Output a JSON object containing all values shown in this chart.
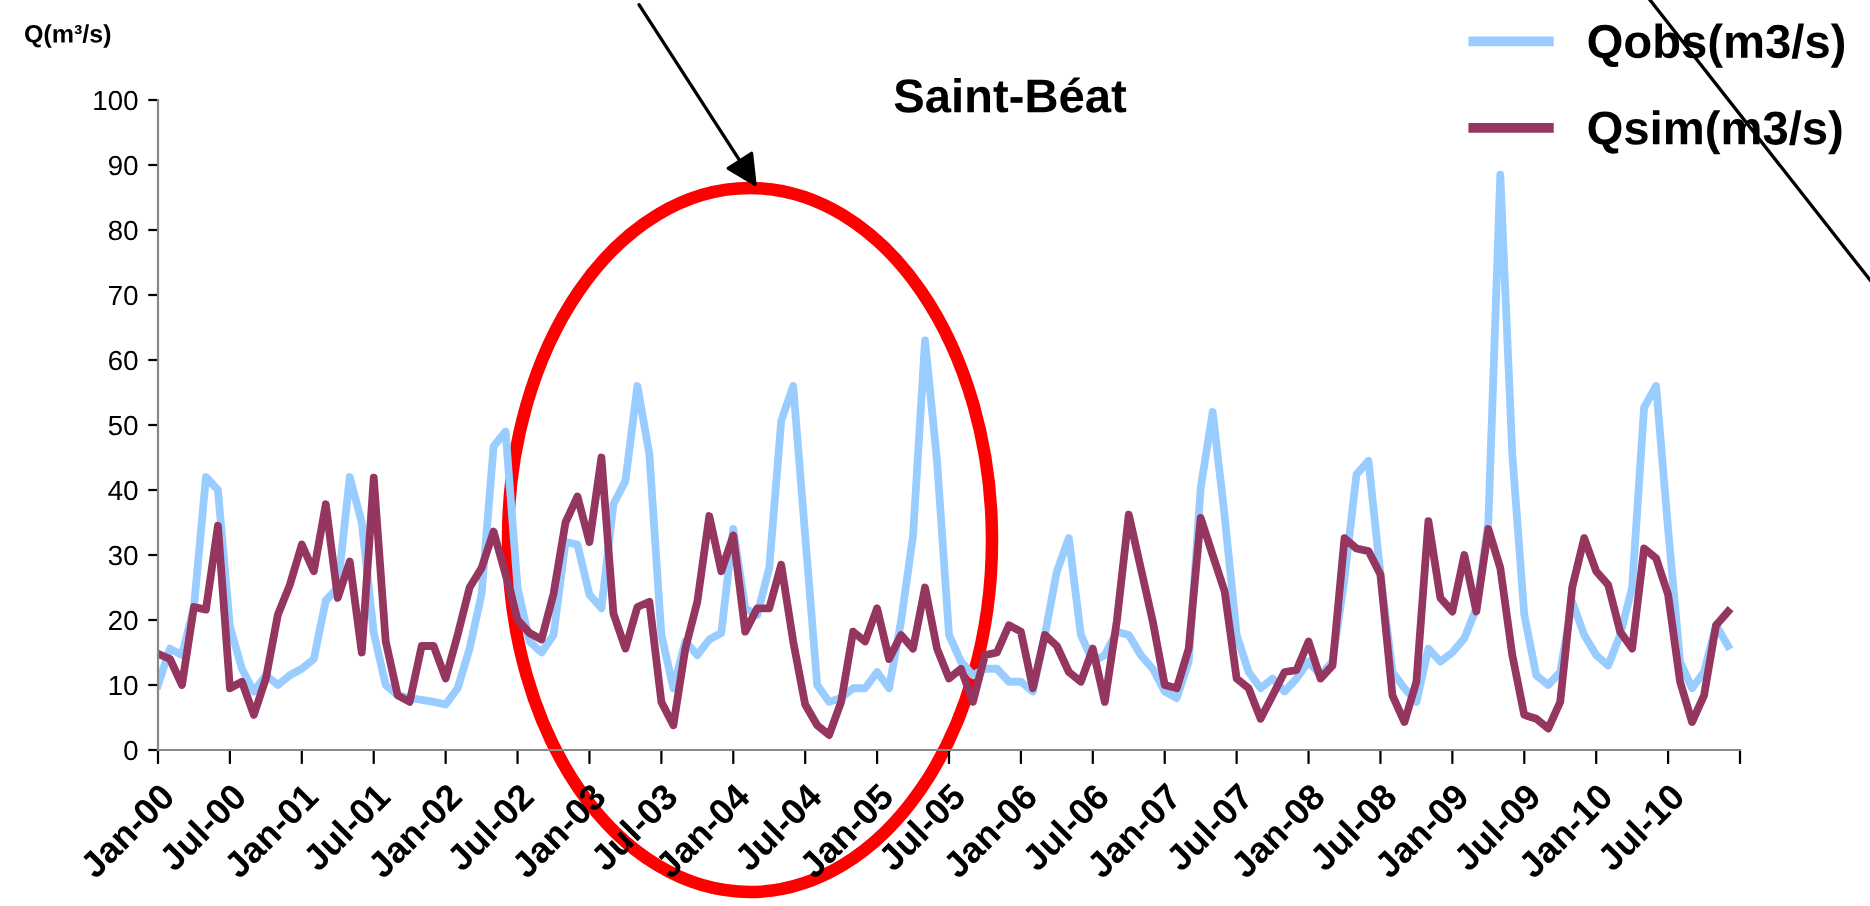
{
  "chart_data": {
    "type": "line",
    "title": "Saint-Béat",
    "ylabel": "Q(m³/s)",
    "x": [
      "2000-01",
      "2000-02",
      "2000-03",
      "2000-04",
      "2000-05",
      "2000-06",
      "2000-07",
      "2000-08",
      "2000-09",
      "2000-10",
      "2000-11",
      "2000-12",
      "2001-01",
      "2001-02",
      "2001-03",
      "2001-04",
      "2001-05",
      "2001-06",
      "2001-07",
      "2001-08",
      "2001-09",
      "2001-10",
      "2001-11",
      "2001-12",
      "2002-01",
      "2002-02",
      "2002-03",
      "2002-04",
      "2002-05",
      "2002-06",
      "2002-07",
      "2002-08",
      "2002-09",
      "2002-10",
      "2002-11",
      "2002-12",
      "2003-01",
      "2003-02",
      "2003-03",
      "2003-04",
      "2003-05",
      "2003-06",
      "2003-07",
      "2003-08",
      "2003-09",
      "2003-10",
      "2003-11",
      "2003-12",
      "2004-01",
      "2004-02",
      "2004-03",
      "2004-04",
      "2004-05",
      "2004-06",
      "2004-07",
      "2004-08",
      "2004-09",
      "2004-10",
      "2004-11",
      "2004-12",
      "2005-01",
      "2005-02",
      "2005-03",
      "2005-04",
      "2005-05",
      "2005-06",
      "2005-07",
      "2005-08",
      "2005-09",
      "2005-10",
      "2005-11",
      "2005-12",
      "2006-01",
      "2006-02",
      "2006-03",
      "2006-04",
      "2006-05",
      "2006-06",
      "2006-07",
      "2006-08",
      "2006-09",
      "2006-10",
      "2006-11",
      "2006-12",
      "2007-01",
      "2007-02",
      "2007-03",
      "2007-04",
      "2007-05",
      "2007-06",
      "2007-07",
      "2007-08",
      "2007-09",
      "2007-10",
      "2007-11",
      "2007-12",
      "2008-01",
      "2008-02",
      "2008-03",
      "2008-04",
      "2008-05",
      "2008-06",
      "2008-07",
      "2008-08",
      "2008-09",
      "2008-10",
      "2008-11",
      "2008-12",
      "2009-01",
      "2009-02",
      "2009-03",
      "2009-04",
      "2009-05",
      "2009-06",
      "2009-07",
      "2009-08",
      "2009-09",
      "2009-10",
      "2009-11",
      "2009-12",
      "2010-01",
      "2010-02",
      "2010-03",
      "2010-04",
      "2010-05",
      "2010-06",
      "2010-07",
      "2010-08",
      "2010-09",
      "2010-10",
      "2010-11",
      "2010-12"
    ],
    "series": [
      {
        "name": "Qobs(m3/s)",
        "color": "#99ccff",
        "values": [
          10,
          15.6,
          14.6,
          22,
          42,
          40,
          19,
          12.5,
          9,
          11.5,
          10,
          11.5,
          12.5,
          14,
          23,
          25,
          42,
          35,
          18,
          10,
          8.4,
          8,
          7.7,
          7.4,
          7,
          9.5,
          15.6,
          24,
          46.7,
          49,
          25,
          16.7,
          15,
          17.7,
          32,
          31.6,
          23.9,
          21.8,
          37.8,
          41.4,
          56,
          45.5,
          17.7,
          9.5,
          16.7,
          14.6,
          17,
          18,
          34,
          21.8,
          20.8,
          28,
          50.6,
          56,
          33,
          10,
          7.4,
          8,
          9.5,
          9.5,
          12,
          9.5,
          19.8,
          33,
          63,
          44.5,
          17.7,
          13.6,
          11.5,
          12.5,
          12.5,
          10.5,
          10.5,
          9,
          17.7,
          27.5,
          32.6,
          17.7,
          13.6,
          14.6,
          18.2,
          17.7,
          14.6,
          12.5,
          9,
          8,
          13.6,
          40.3,
          52,
          36,
          17.7,
          12,
          9.5,
          11,
          9,
          11,
          13.6,
          11.5,
          13.6,
          26.4,
          42.4,
          44.5,
          27,
          12,
          9.5,
          7.4,
          15.6,
          13.6,
          15,
          17.2,
          21.8,
          35,
          88.5,
          45.5,
          20.8,
          11.5,
          10,
          12,
          22.8,
          17.7,
          14.6,
          13,
          17.7,
          25,
          52.7,
          56,
          34,
          13.6,
          9.5,
          12,
          19.2,
          16
        ]
      },
      {
        "name": "Qsim(m3/s)",
        "color": "#953660",
        "values": [
          14.8,
          14,
          10,
          22,
          21.6,
          34.5,
          9.5,
          10.5,
          5.4,
          11,
          20.8,
          25.4,
          31.6,
          27.5,
          37.8,
          23.4,
          29,
          15,
          41.9,
          16.7,
          8.4,
          7.4,
          16,
          16,
          11,
          17.7,
          25,
          28,
          33.6,
          27,
          20,
          18,
          17,
          24,
          35,
          39,
          32,
          45,
          21,
          15.6,
          22,
          22.8,
          7.4,
          3.8,
          15.6,
          22.8,
          36,
          27.5,
          33,
          18.2,
          21.8,
          21.8,
          28.5,
          16.7,
          7,
          3.8,
          2.3,
          7.4,
          18.2,
          16.7,
          21.8,
          14,
          17.7,
          15.6,
          25,
          15.6,
          11,
          12.5,
          7.4,
          14.6,
          15,
          19.2,
          18.2,
          9.5,
          17.7,
          16,
          12,
          10.5,
          15.6,
          7.4,
          19.8,
          36.2,
          28,
          19.8,
          10,
          9.5,
          15.6,
          35.7,
          30,
          24.4,
          11,
          9.5,
          4.8,
          8.4,
          12,
          12.3,
          16.7,
          11,
          13,
          32.6,
          31,
          30.6,
          27,
          8.4,
          4.3,
          10.5,
          35.2,
          23.4,
          21.3,
          30,
          21.3,
          34,
          28,
          14.6,
          5.4,
          4.8,
          3.3,
          7.4,
          25,
          32.6,
          27.5,
          25.4,
          18.2,
          15.6,
          31,
          29.5,
          23.9,
          10.5,
          4.3,
          8.4,
          19.2,
          21.3
        ]
      }
    ],
    "xlim": [
      "2000-01",
      "2011-01"
    ],
    "xticks": [
      {
        "value": "2000-01",
        "label": "Jan-00"
      },
      {
        "value": "2000-07",
        "label": "Jul-00"
      },
      {
        "value": "2001-01",
        "label": "Jan-01"
      },
      {
        "value": "2001-07",
        "label": "Jul-01"
      },
      {
        "value": "2002-01",
        "label": "Jan-02"
      },
      {
        "value": "2002-07",
        "label": "Jul-02"
      },
      {
        "value": "2003-01",
        "label": "Jan-03"
      },
      {
        "value": "2003-07",
        "label": "Jul-03"
      },
      {
        "value": "2004-01",
        "label": "Jan-04"
      },
      {
        "value": "2004-07",
        "label": "Jul-04"
      },
      {
        "value": "2005-01",
        "label": "Jan-05"
      },
      {
        "value": "2005-07",
        "label": "Jul-05"
      },
      {
        "value": "2006-01",
        "label": "Jan-06"
      },
      {
        "value": "2006-07",
        "label": "Jul-06"
      },
      {
        "value": "2007-01",
        "label": "Jan-07"
      },
      {
        "value": "2007-07",
        "label": "Jul-07"
      },
      {
        "value": "2008-01",
        "label": "Jan-08"
      },
      {
        "value": "2008-07",
        "label": "Jul-08"
      },
      {
        "value": "2009-01",
        "label": "Jan-09"
      },
      {
        "value": "2009-07",
        "label": "Jul-09"
      },
      {
        "value": "2010-01",
        "label": "Jan-10"
      },
      {
        "value": "2010-07",
        "label": "Jul-10"
      },
      {
        "value": "2011-01",
        "label": null
      }
    ],
    "ylim": [
      0,
      100
    ],
    "yticks": [
      0,
      10,
      20,
      30,
      40,
      50,
      60,
      70,
      80,
      90,
      100
    ],
    "grid": false,
    "legend": "top right",
    "marker": "none",
    "line_style": "solid"
  }
}
